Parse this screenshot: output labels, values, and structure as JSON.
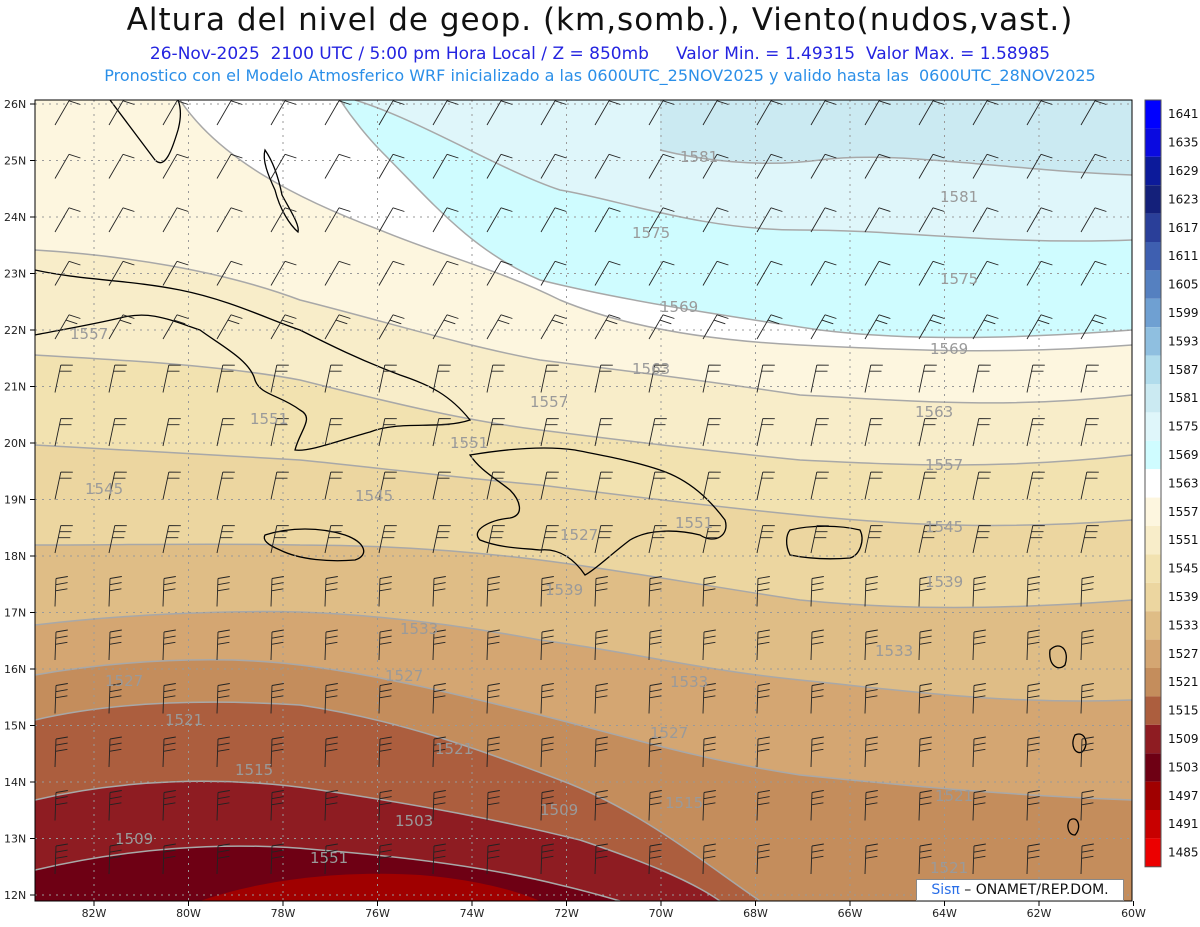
{
  "header": {
    "title": "Altura del nivel de geop. (km,somb.), Viento(nudos,vast.)",
    "line1": "26-Nov-2025  2100 UTC / 5:00 pm Hora Local / Z = 850mb     Valor Min. = 1.49315  Valor Max. = 1.58985",
    "line2": "Pronostico con el Modelo Atmosferico WRF inicializado a las 0600UTC_25NOV2025 y valido hasta las  0600UTC_28NOV2025"
  },
  "map": {
    "lat_labels": [
      "26N",
      "25N",
      "24N",
      "23N",
      "22N",
      "21N",
      "20N",
      "19N",
      "18N",
      "17N",
      "16N",
      "15N",
      "14N",
      "13N",
      "12N"
    ],
    "lon_labels": [
      "82W",
      "80W",
      "78W",
      "76W",
      "74W",
      "72W",
      "70W",
      "68W",
      "66W",
      "64W",
      "62W",
      "60W"
    ],
    "contour_labels": [
      "1581",
      "1581",
      "1575",
      "1575",
      "1569",
      "1569",
      "1563",
      "1563",
      "1557",
      "1557",
      "1557",
      "1551",
      "1551",
      "1551",
      "1545",
      "1545",
      "1545",
      "1539",
      "1539",
      "1533",
      "1533",
      "1533",
      "1527",
      "1527",
      "1527",
      "1521",
      "1521",
      "1521",
      "1515",
      "1515",
      "1509",
      "1509",
      "1503",
      "1551",
      "1527",
      "1521"
    ],
    "colors": {
      "c1641": "#0000ff",
      "c1635": "#0a0ae0",
      "c1629": "#0c1a9a",
      "c1623": "#14207a",
      "c1617": "#2a3f99",
      "c1611": "#3e5fb0",
      "c1605": "#5580c0",
      "c1599": "#6fa0d2",
      "c1593": "#8fbfe0",
      "c1587": "#b1dcec",
      "c1581": "#cbeaf2",
      "c1575": "#dff6fa",
      "c1569": "#cffcff",
      "c1563": "#ffffff",
      "c1557": "#fdf6df",
      "c1551": "#f8edc9",
      "c1545": "#f2e2b0",
      "c1539": "#ecd6a0",
      "c1533": "#dfbd86",
      "c1527": "#d4a672",
      "c1521": "#c48d5c",
      "c1515": "#ac5e3e",
      "c1509": "#8e1c22",
      "c1503": "#6e0014",
      "c1497": "#a00000",
      "c1491": "#c80000",
      "c1485": "#ec0000"
    }
  },
  "colorbar": {
    "labels": [
      "1641",
      "1635",
      "1629",
      "1623",
      "1617",
      "1611",
      "1605",
      "1599",
      "1593",
      "1587",
      "1581",
      "1575",
      "1569",
      "1563",
      "1557",
      "1551",
      "1545",
      "1539",
      "1533",
      "1527",
      "1521",
      "1515",
      "1509",
      "1503",
      "1497",
      "1491",
      "1485"
    ]
  },
  "badge": {
    "sis": "Sisπ",
    "rest": " – ONAMET/REP.DOM."
  }
}
